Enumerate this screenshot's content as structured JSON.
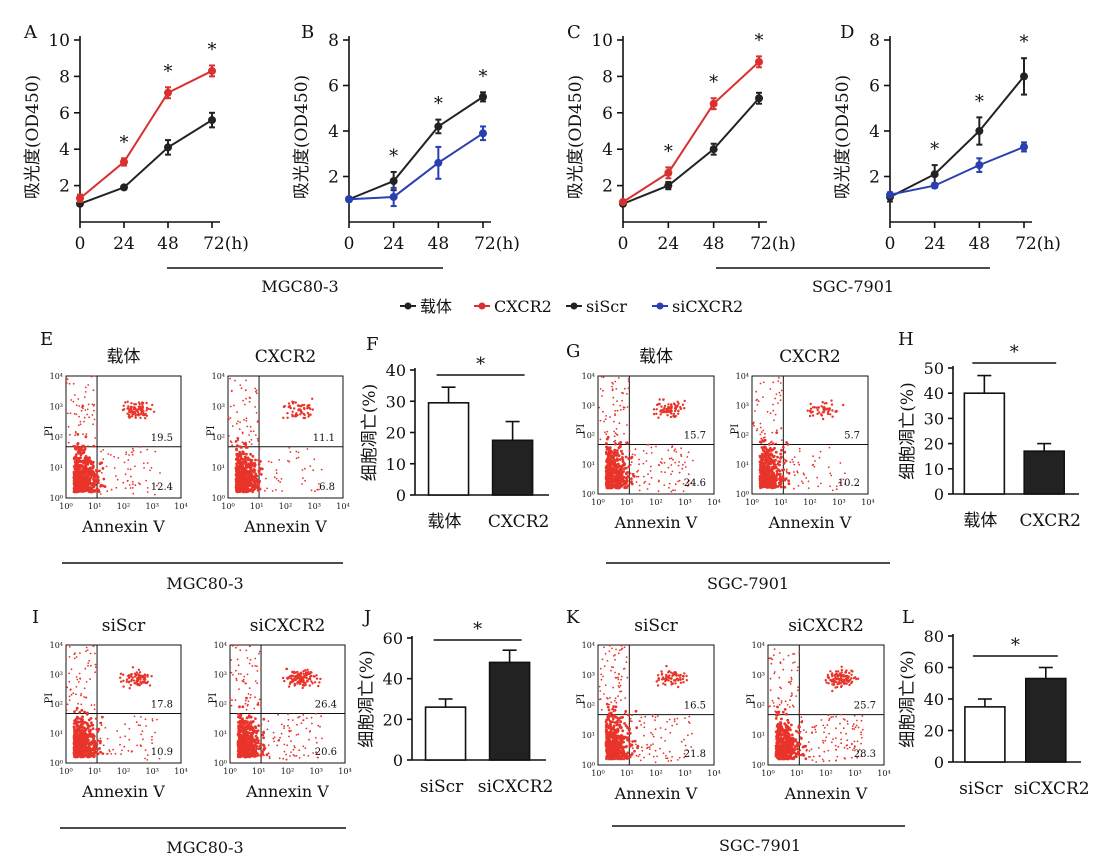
{
  "colors": {
    "black": "#222222",
    "red": "#d93030",
    "blue": "#2a3fb0",
    "dots": "#e8342a"
  },
  "line_charts_common": {
    "ylabel": "吸光度(OD450)",
    "xticks": [
      "0",
      "24",
      "48",
      "72(h)"
    ],
    "star": "*"
  },
  "groups": {
    "mgc_top": "MGC80-3",
    "sgc_top": "SGC-7901",
    "mgc_mid": "MGC80-3",
    "sgc_mid": "SGC-7901",
    "mgc_bot": "MGC80-3",
    "sgc_bot": "SGC-7901"
  },
  "legend": [
    {
      "label": "载体",
      "color": "#222222"
    },
    {
      "label": "CXCR2",
      "color": "#d93030"
    },
    {
      "label": "siScr",
      "color": "#222222"
    },
    {
      "label": "siCXCR2",
      "color": "#2a3fb0"
    }
  ],
  "flow_common": {
    "xlabel": "Annexin V",
    "ylabel": "PI",
    "ticks": [
      "10⁰",
      "10¹",
      "10²",
      "10³",
      "10⁴"
    ]
  },
  "bar_common": {
    "ylabel": "细胞凋亡(%)",
    "star": "*"
  },
  "chart_data": [
    {
      "id": "A",
      "type": "line",
      "title": "A",
      "ylim": [
        0,
        10
      ],
      "yticks": [
        2,
        4,
        6,
        8,
        10
      ],
      "x": [
        0,
        24,
        48,
        72
      ],
      "series": [
        {
          "name": "载体",
          "color": "#222222",
          "values": [
            1.0,
            1.9,
            4.1,
            5.6
          ],
          "err": [
            0.1,
            0.1,
            0.4,
            0.4
          ]
        },
        {
          "name": "CXCR2",
          "color": "#d93030",
          "values": [
            1.3,
            3.3,
            7.1,
            8.3
          ],
          "err": [
            0.2,
            0.2,
            0.3,
            0.3
          ]
        }
      ],
      "stars_at": [
        24,
        48,
        72
      ]
    },
    {
      "id": "B",
      "type": "line",
      "title": "B",
      "ylim": [
        0,
        8
      ],
      "yticks": [
        2,
        4,
        6,
        8
      ],
      "x": [
        0,
        24,
        48,
        72
      ],
      "series": [
        {
          "name": "siScr",
          "color": "#222222",
          "values": [
            1.0,
            1.8,
            4.2,
            5.5
          ],
          "err": [
            0.1,
            0.4,
            0.3,
            0.2
          ]
        },
        {
          "name": "siCXCR2",
          "color": "#2a3fb0",
          "values": [
            1.0,
            1.1,
            2.6,
            3.9
          ],
          "err": [
            0.1,
            0.4,
            0.7,
            0.3
          ]
        }
      ],
      "stars_at": [
        24,
        48,
        72
      ]
    },
    {
      "id": "C",
      "type": "line",
      "title": "C",
      "ylim": [
        0,
        10
      ],
      "yticks": [
        2,
        4,
        6,
        8,
        10
      ],
      "x": [
        0,
        24,
        48,
        72
      ],
      "series": [
        {
          "name": "载体",
          "color": "#222222",
          "values": [
            1.0,
            2.0,
            4.0,
            6.8
          ],
          "err": [
            0.1,
            0.2,
            0.3,
            0.3
          ]
        },
        {
          "name": "CXCR2",
          "color": "#d93030",
          "values": [
            1.1,
            2.7,
            6.5,
            8.8
          ],
          "err": [
            0.1,
            0.3,
            0.3,
            0.3
          ]
        }
      ],
      "stars_at": [
        24,
        48,
        72
      ]
    },
    {
      "id": "D",
      "type": "line",
      "title": "D",
      "ylim": [
        0,
        8
      ],
      "yticks": [
        2,
        4,
        6,
        8
      ],
      "x": [
        0,
        24,
        48,
        72
      ],
      "series": [
        {
          "name": "siScr",
          "color": "#222222",
          "values": [
            1.1,
            2.1,
            4.0,
            6.4
          ],
          "err": [
            0.2,
            0.4,
            0.6,
            0.8
          ]
        },
        {
          "name": "siCXCR2",
          "color": "#2a3fb0",
          "values": [
            1.2,
            1.6,
            2.5,
            3.3
          ],
          "err": [
            0.1,
            0.1,
            0.3,
            0.2
          ]
        }
      ],
      "stars_at": [
        24,
        48,
        72
      ]
    },
    {
      "id": "E",
      "type": "scatter",
      "title": "E",
      "plots": [
        {
          "title": "载体",
          "ur": "19.5",
          "lr": "12.4",
          "ur_n": 90,
          "lr_n": 60,
          "ll_n": 500,
          "ul_n": 60
        },
        {
          "title": "CXCR2",
          "ur": "11.1",
          "lr": "6.8",
          "ur_n": 60,
          "lr_n": 40,
          "ll_n": 520,
          "ul_n": 60
        }
      ]
    },
    {
      "id": "F",
      "type": "bar",
      "title": "F",
      "ylim": [
        0,
        40
      ],
      "yticks": [
        0,
        10,
        20,
        30,
        40
      ],
      "categories": [
        "载体",
        "CXCR2"
      ],
      "values": [
        29.5,
        17.5
      ],
      "err": [
        5,
        6
      ],
      "fills": [
        "#ffffff",
        "#222222"
      ]
    },
    {
      "id": "G",
      "type": "scatter",
      "title": "G",
      "plots": [
        {
          "title": "载体",
          "ur": "15.7",
          "lr": "24.6",
          "ur_n": 80,
          "lr_n": 90,
          "ll_n": 450,
          "ul_n": 60
        },
        {
          "title": "CXCR2",
          "ur": "5.7",
          "lr": "10.2",
          "ur_n": 50,
          "lr_n": 50,
          "ll_n": 480,
          "ul_n": 50
        }
      ]
    },
    {
      "id": "H",
      "type": "bar",
      "title": "H",
      "ylim": [
        0,
        50
      ],
      "yticks": [
        0,
        10,
        20,
        30,
        40,
        50
      ],
      "categories": [
        "载体",
        "CXCR2"
      ],
      "values": [
        40,
        17
      ],
      "err": [
        7,
        3
      ],
      "fills": [
        "#ffffff",
        "#222222"
      ]
    },
    {
      "id": "I",
      "type": "scatter",
      "title": "I",
      "plots": [
        {
          "title": "siScr",
          "ur": "17.8",
          "lr": "10.9",
          "ur_n": 80,
          "lr_n": 50,
          "ll_n": 480,
          "ul_n": 60
        },
        {
          "title": "siCXCR2",
          "ur": "26.4",
          "lr": "20.6",
          "ur_n": 130,
          "lr_n": 90,
          "ll_n": 480,
          "ul_n": 60
        }
      ]
    },
    {
      "id": "J",
      "type": "bar",
      "title": "J",
      "ylim": [
        0,
        60
      ],
      "yticks": [
        0,
        20,
        40,
        60
      ],
      "categories": [
        "siScr",
        "siCXCR2"
      ],
      "values": [
        26,
        48
      ],
      "err": [
        4,
        6
      ],
      "fills": [
        "#ffffff",
        "#222222"
      ]
    },
    {
      "id": "K",
      "type": "scatter",
      "title": "K",
      "plots": [
        {
          "title": "siScr",
          "ur": "16.5",
          "lr": "21.8",
          "ur_n": 70,
          "lr_n": 80,
          "ll_n": 450,
          "ul_n": 70
        },
        {
          "title": "siCXCR2",
          "ur": "25.7",
          "lr": "28.3",
          "ur_n": 110,
          "lr_n": 110,
          "ll_n": 450,
          "ul_n": 60
        }
      ]
    },
    {
      "id": "L",
      "type": "bar",
      "title": "L",
      "ylim": [
        0,
        80
      ],
      "yticks": [
        0,
        20,
        40,
        60,
        80
      ],
      "categories": [
        "siScr",
        "siCXCR2"
      ],
      "values": [
        35,
        53
      ],
      "err": [
        5,
        7
      ],
      "fills": [
        "#ffffff",
        "#222222"
      ]
    }
  ]
}
